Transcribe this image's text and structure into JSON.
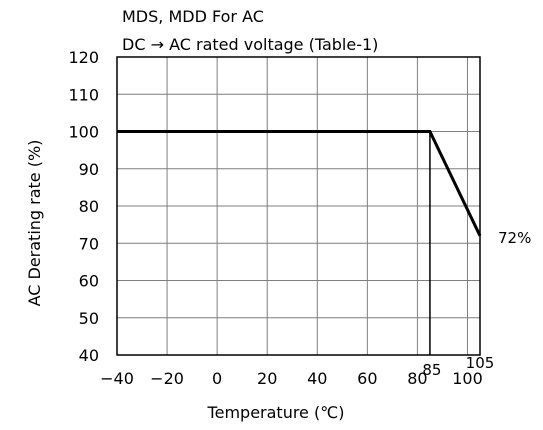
{
  "chart_data": {
    "type": "line",
    "title_lines": [
      "MDS, MDD For AC",
      "DC → AC rated voltage (Table-1)"
    ],
    "xlabel": "Temperature (℃)",
    "ylabel": "AC Derating rate (%)",
    "xlim": [
      -40,
      105
    ],
    "ylim": [
      40,
      120
    ],
    "x_ticks": [
      -40,
      -20,
      0,
      20,
      40,
      60,
      80,
      100
    ],
    "y_ticks": [
      40,
      50,
      60,
      70,
      80,
      90,
      100,
      110,
      120
    ],
    "grid": true,
    "series": [
      {
        "x": [
          -40,
          85,
          105
        ],
        "y": [
          100,
          100,
          72
        ]
      }
    ],
    "annotations": [
      {
        "text": "85",
        "x": 85,
        "kind": "vertical-marker"
      },
      {
        "text": "105",
        "x": 105,
        "kind": "end-marker"
      },
      {
        "text": "72%",
        "x": 105,
        "y": 72,
        "kind": "end-value"
      }
    ],
    "colors": {
      "line": "#000000",
      "grid": "#7f7f7f"
    }
  }
}
